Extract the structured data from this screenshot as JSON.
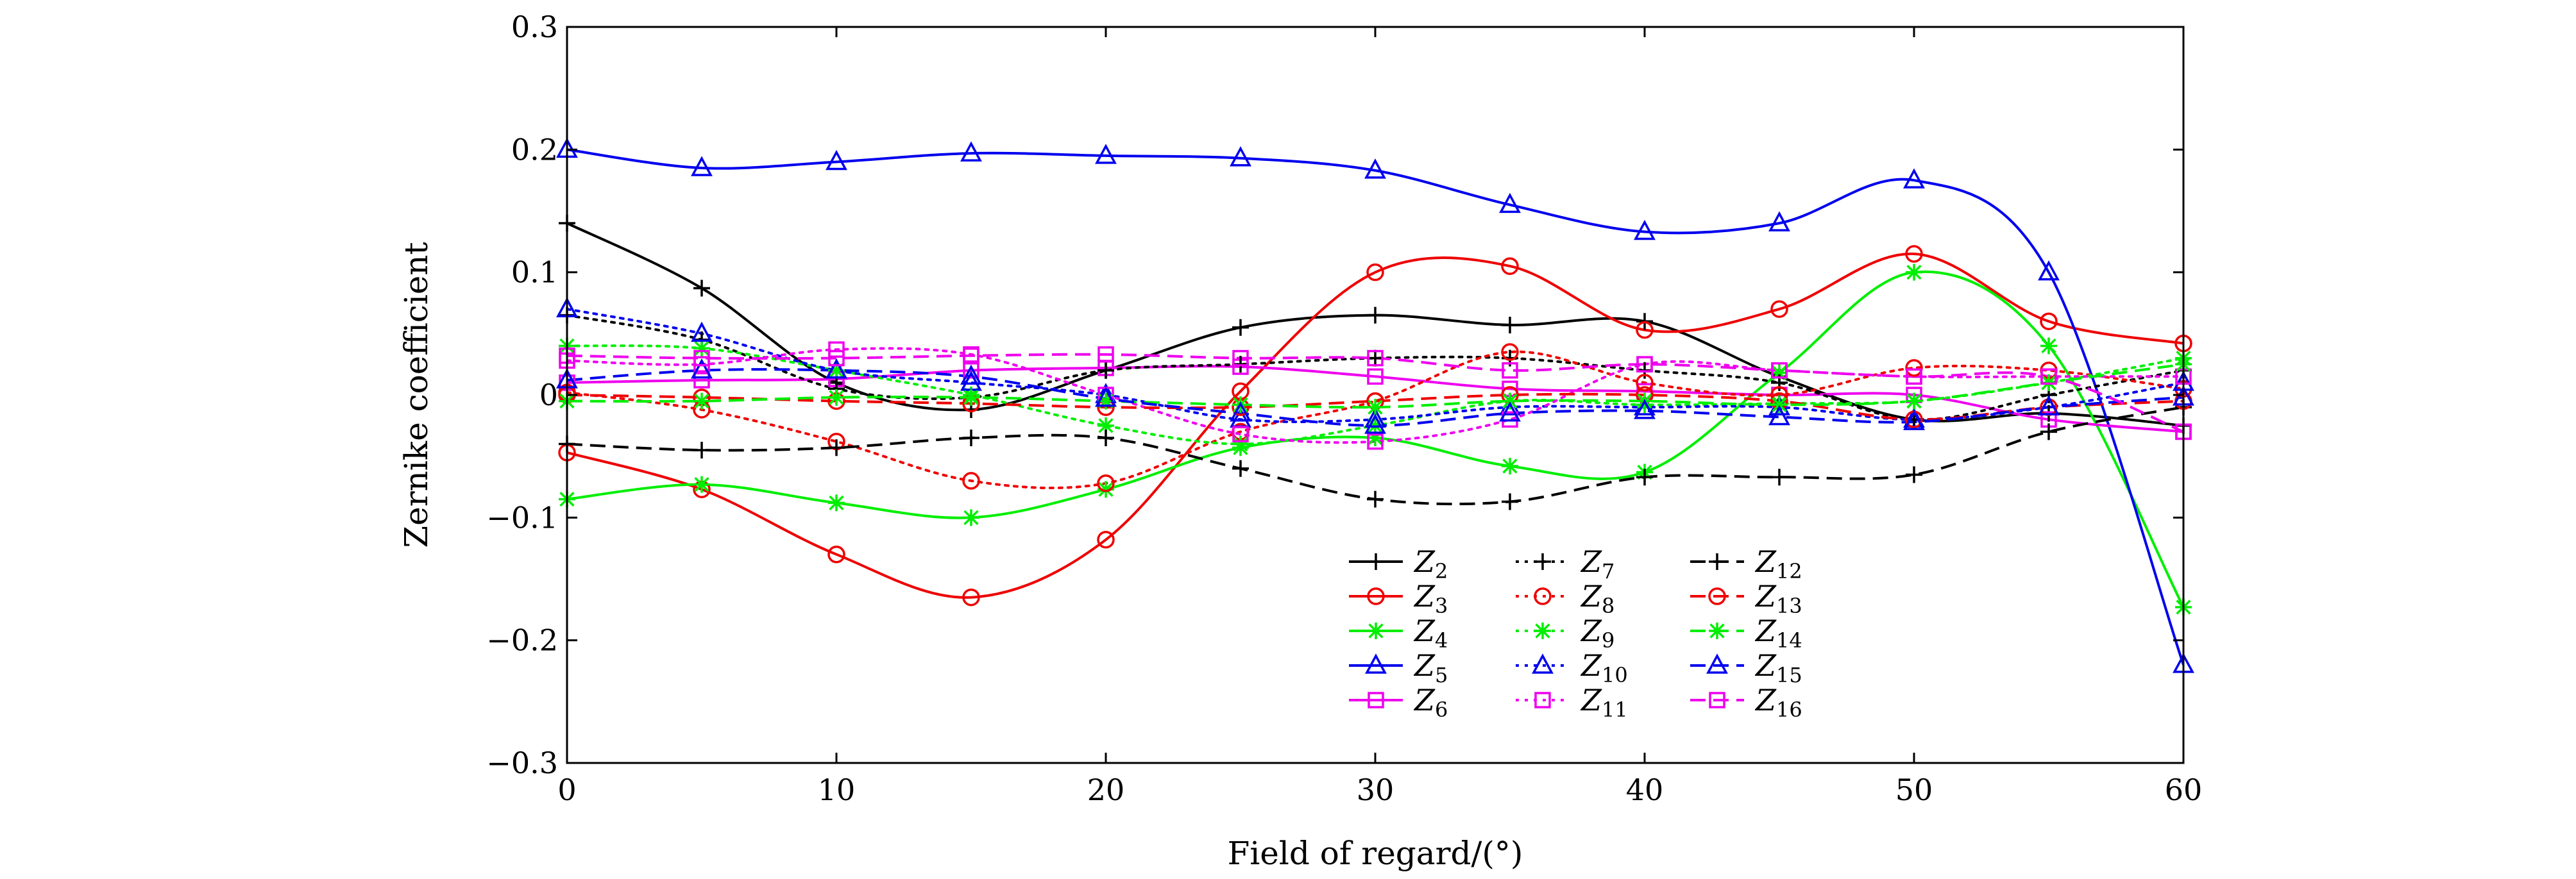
{
  "chart_data": {
    "type": "line",
    "title": "",
    "xlabel": "Field of regard/(°)",
    "ylabel": "Zernike coefficient",
    "xlim": [
      0,
      60
    ],
    "ylim": [
      -0.3,
      0.3
    ],
    "xticks": [
      0,
      10,
      20,
      30,
      40,
      50,
      60
    ],
    "xtick_labels": [
      "0",
      "10",
      "20",
      "30",
      "40",
      "50",
      "60"
    ],
    "yticks": [
      -0.3,
      -0.2,
      -0.1,
      0,
      0.1,
      0.2,
      0.3
    ],
    "ytick_labels": [
      "−0.3",
      "−0.2",
      "−0.1",
      "0",
      "0.1",
      "0.2",
      "0.3"
    ],
    "grid": false,
    "legend_position": "bottom-center",
    "x": [
      0,
      5,
      10,
      15,
      20,
      25,
      30,
      35,
      40,
      45,
      50,
      55,
      60
    ],
    "series": [
      {
        "name": "Z",
        "sub": "2",
        "color": "#000000",
        "dash": "solid",
        "marker": "plus",
        "values": [
          0.14,
          0.087,
          0.01,
          -0.012,
          0.02,
          0.055,
          0.065,
          0.057,
          0.06,
          0.015,
          -0.02,
          -0.015,
          -0.025
        ]
      },
      {
        "name": "Z",
        "sub": "3",
        "color": "#ee0000",
        "dash": "solid",
        "marker": "circle",
        "values": [
          -0.047,
          -0.077,
          -0.13,
          -0.165,
          -0.118,
          0.003,
          0.1,
          0.105,
          0.053,
          0.07,
          0.115,
          0.06,
          0.042
        ]
      },
      {
        "name": "Z",
        "sub": "4",
        "color": "#00ee00",
        "dash": "solid",
        "marker": "asterisk",
        "values": [
          -0.085,
          -0.073,
          -0.088,
          -0.1,
          -0.077,
          -0.043,
          -0.035,
          -0.058,
          -0.063,
          0.018,
          0.1,
          0.04,
          -0.173
        ]
      },
      {
        "name": "Z",
        "sub": "5",
        "color": "#0000ee",
        "dash": "solid",
        "marker": "triangle",
        "values": [
          0.2,
          0.185,
          0.19,
          0.197,
          0.195,
          0.193,
          0.183,
          0.155,
          0.133,
          0.14,
          0.175,
          0.1,
          -0.22
        ]
      },
      {
        "name": "Z",
        "sub": "6",
        "color": "#ee00ee",
        "dash": "solid",
        "marker": "square",
        "values": [
          0.01,
          0.012,
          0.013,
          0.02,
          0.022,
          0.023,
          0.015,
          0.005,
          0.003,
          0.0,
          0.0,
          -0.02,
          -0.03
        ]
      },
      {
        "name": "Z",
        "sub": "7",
        "color": "#000000",
        "dash": "dotted",
        "marker": "plus",
        "values": [
          0.065,
          0.045,
          0.005,
          -0.002,
          0.02,
          0.025,
          0.03,
          0.03,
          0.02,
          0.01,
          -0.02,
          0.0,
          0.02
        ]
      },
      {
        "name": "Z",
        "sub": "8",
        "color": "#ee0000",
        "dash": "dotted",
        "marker": "circle",
        "values": [
          0.002,
          -0.012,
          -0.038,
          -0.07,
          -0.072,
          -0.03,
          -0.005,
          0.035,
          0.01,
          0.0,
          0.022,
          0.02,
          0.005
        ]
      },
      {
        "name": "Z",
        "sub": "9",
        "color": "#00ee00",
        "dash": "dotted",
        "marker": "asterisk",
        "values": [
          0.04,
          0.038,
          0.02,
          0.0,
          -0.025,
          -0.04,
          -0.025,
          -0.005,
          -0.008,
          -0.007,
          -0.005,
          0.01,
          0.03
        ]
      },
      {
        "name": "Z",
        "sub": "10",
        "color": "#0000ee",
        "dash": "dotted",
        "marker": "triangle",
        "values": [
          0.07,
          0.05,
          0.02,
          0.01,
          0.0,
          -0.02,
          -0.02,
          -0.01,
          -0.01,
          -0.01,
          -0.02,
          -0.01,
          0.01
        ]
      },
      {
        "name": "Z",
        "sub": "11",
        "color": "#ee00ee",
        "dash": "dotted",
        "marker": "square",
        "values": [
          0.028,
          0.025,
          0.037,
          0.033,
          0.0,
          -0.032,
          -0.038,
          -0.02,
          0.025,
          0.02,
          0.015,
          0.015,
          0.015
        ]
      },
      {
        "name": "Z",
        "sub": "12",
        "color": "#000000",
        "dash": "dashed",
        "marker": "plus",
        "values": [
          -0.04,
          -0.045,
          -0.043,
          -0.035,
          -0.035,
          -0.06,
          -0.085,
          -0.087,
          -0.067,
          -0.067,
          -0.065,
          -0.03,
          -0.01
        ]
      },
      {
        "name": "Z",
        "sub": "13",
        "color": "#ee0000",
        "dash": "dashed",
        "marker": "circle",
        "values": [
          0.0,
          -0.002,
          -0.005,
          -0.007,
          -0.01,
          -0.01,
          -0.005,
          0.0,
          0.0,
          -0.005,
          -0.02,
          -0.01,
          -0.005
        ]
      },
      {
        "name": "Z",
        "sub": "14",
        "color": "#00ee00",
        "dash": "dashed",
        "marker": "asterisk",
        "values": [
          -0.005,
          -0.005,
          -0.002,
          -0.002,
          -0.005,
          -0.008,
          -0.01,
          -0.005,
          -0.005,
          -0.008,
          -0.005,
          0.01,
          0.025
        ]
      },
      {
        "name": "Z",
        "sub": "15",
        "color": "#0000ee",
        "dash": "dashed",
        "marker": "triangle",
        "values": [
          0.012,
          0.02,
          0.02,
          0.015,
          -0.003,
          -0.015,
          -0.025,
          -0.015,
          -0.013,
          -0.018,
          -0.022,
          -0.01,
          -0.002
        ]
      },
      {
        "name": "Z",
        "sub": "16",
        "color": "#ee00ee",
        "dash": "dashed",
        "marker": "square",
        "values": [
          0.032,
          0.03,
          0.03,
          0.032,
          0.033,
          0.03,
          0.03,
          0.02,
          0.025,
          0.02,
          0.015,
          0.015,
          -0.03
        ]
      }
    ]
  }
}
